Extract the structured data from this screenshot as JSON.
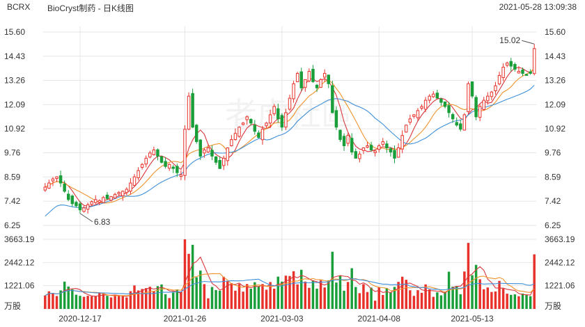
{
  "header": {
    "ticker": "BCRX",
    "title": "BioCryst制药 - 日K线图",
    "timestamp": "2021-05-28 13:09:38"
  },
  "watermark": "老虎社區",
  "colors": {
    "up": "#e8312a",
    "down": "#1a9e3a",
    "ma_short": "#d9363a",
    "ma_mid": "#f0932b",
    "ma_long": "#3d8fd9",
    "grid": "#e6e6e6"
  },
  "chart_data": {
    "type": "candlestick",
    "price_axis": {
      "ticks": [
        "15.60",
        "14.43",
        "13.26",
        "12.09",
        "10.92",
        "9.76",
        "8.59",
        "7.42",
        "6.25"
      ],
      "range": [
        6.25,
        15.6
      ]
    },
    "volume_axis": {
      "ticks": [
        "3663.19",
        "2442.12",
        "1221.06"
      ],
      "unit": "万股",
      "range": [
        0,
        3663.19
      ]
    },
    "x_ticks": [
      {
        "label": "2020-12-17",
        "index": 9
      },
      {
        "label": "2021-01-26",
        "index": 36
      },
      {
        "label": "2021-03-03",
        "index": 61
      },
      {
        "label": "2021-04-08",
        "index": 86
      },
      {
        "label": "2021-05-13",
        "index": 110
      }
    ],
    "annotations": {
      "high": {
        "label": "15.02",
        "value": 15.02,
        "index": 126
      },
      "low": {
        "label": "6.83",
        "value": 6.83,
        "index": 9
      }
    },
    "closes": [
      8.1,
      8.3,
      8.5,
      8.6,
      8.3,
      7.9,
      7.5,
      7.3,
      7.2,
      7.0,
      7.1,
      7.25,
      7.4,
      7.5,
      7.45,
      7.6,
      7.55,
      7.65,
      7.75,
      7.85,
      7.9,
      8.0,
      8.3,
      8.6,
      8.9,
      9.2,
      9.5,
      9.75,
      9.9,
      9.6,
      9.3,
      9.1,
      9.2,
      9.0,
      8.8,
      8.7,
      10.9,
      12.5,
      11.0,
      10.3,
      9.6,
      9.9,
      10.0,
      9.6,
      9.3,
      9.0,
      9.5,
      10.0,
      10.4,
      10.7,
      11.0,
      11.2,
      11.5,
      11.2,
      10.8,
      10.5,
      10.9,
      11.2,
      11.6,
      12.0,
      11.4,
      11.0,
      11.7,
      12.4,
      13.1,
      13.6,
      12.9,
      13.3,
      13.7,
      13.2,
      12.9,
      13.3,
      13.6,
      13.1,
      11.7,
      11.0,
      10.4,
      10.1,
      10.6,
      9.8,
      9.5,
      9.7,
      10.0,
      10.1,
      9.9,
      9.85,
      10.1,
      10.3,
      10.0,
      9.8,
      9.5,
      10.0,
      10.6,
      11.1,
      11.4,
      11.6,
      11.8,
      12.0,
      12.3,
      12.5,
      12.6,
      12.4,
      12.2,
      12.0,
      11.7,
      11.4,
      11.1,
      10.9,
      11.6,
      13.1,
      12.5,
      11.5,
      12.0,
      12.3,
      12.5,
      12.7,
      13.0,
      13.5,
      13.9,
      14.1,
      13.95,
      13.8,
      13.7,
      13.6,
      13.5,
      13.6,
      14.8
    ]
  }
}
